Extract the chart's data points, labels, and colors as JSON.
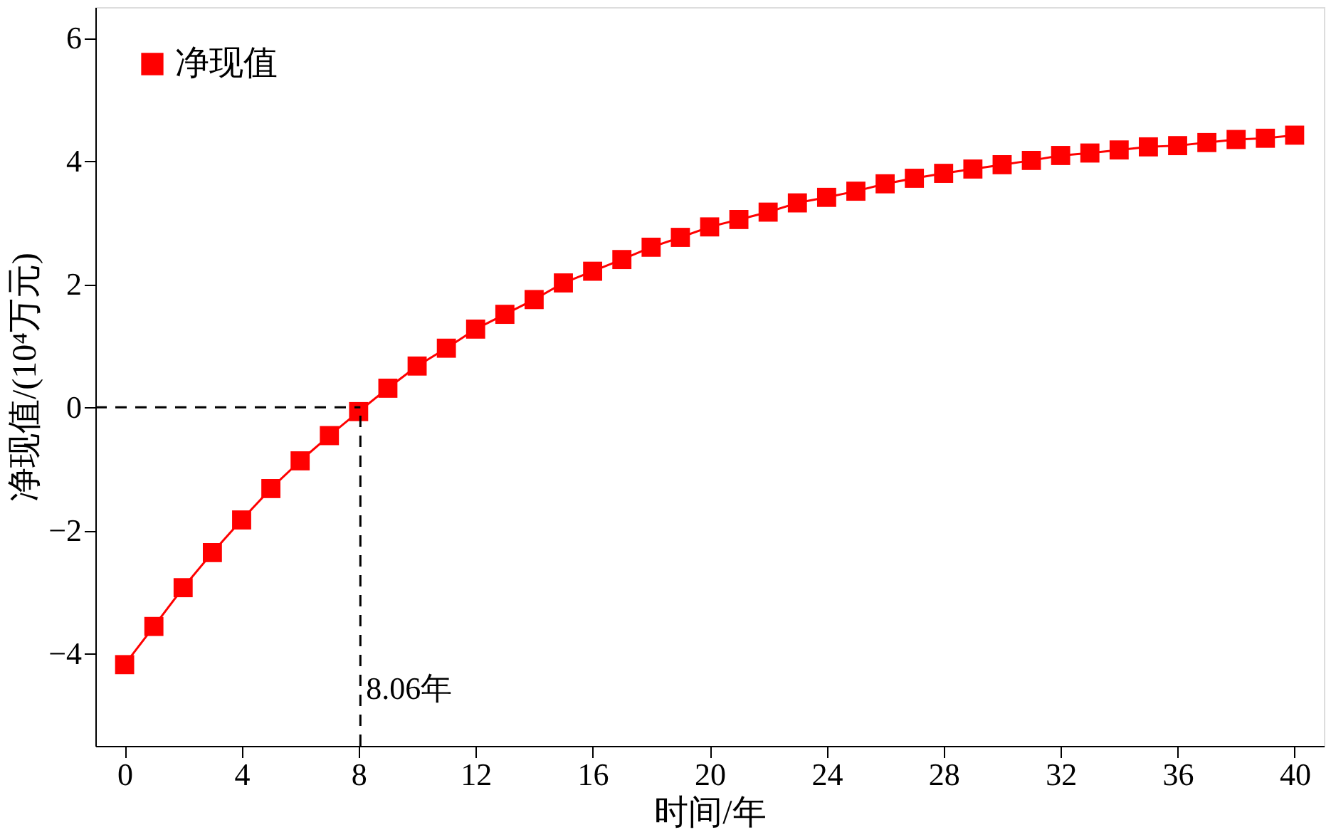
{
  "chart_data": {
    "type": "line",
    "xlabel": "时间/年",
    "ylabel": "净现值/(10⁴万元)",
    "x": [
      0,
      1,
      2,
      3,
      4,
      5,
      6,
      7,
      8,
      9,
      10,
      11,
      12,
      13,
      14,
      15,
      16,
      17,
      18,
      19,
      20,
      21,
      22,
      23,
      24,
      25,
      26,
      27,
      28,
      29,
      30,
      31,
      32,
      33,
      34,
      35,
      36,
      37,
      38,
      39,
      40
    ],
    "series": [
      {
        "name": "净现值",
        "color": "#ff0000",
        "values": [
          -4.18,
          -3.56,
          -2.93,
          -2.36,
          -1.83,
          -1.32,
          -0.87,
          -0.46,
          -0.07,
          0.31,
          0.67,
          0.96,
          1.27,
          1.51,
          1.75,
          2.02,
          2.21,
          2.4,
          2.6,
          2.76,
          2.93,
          3.05,
          3.17,
          3.32,
          3.41,
          3.51,
          3.63,
          3.72,
          3.8,
          3.87,
          3.94,
          4.01,
          4.09,
          4.13,
          4.18,
          4.23,
          4.25,
          4.3,
          4.35,
          4.37,
          4.42
        ]
      }
    ],
    "xlim": [
      -1,
      41
    ],
    "xticks": [
      0,
      4,
      8,
      12,
      16,
      20,
      24,
      28,
      32,
      36,
      40
    ],
    "ylim": [
      -5.5,
      6.5
    ],
    "yticks": [
      -4,
      -2,
      0,
      2,
      4,
      6
    ],
    "ref_lines": [
      {
        "axis": "x",
        "value": 8.06,
        "label": "8.06年",
        "color": "#000000",
        "line_style": "dashed"
      },
      {
        "axis": "y",
        "value": 0,
        "color": "#000000",
        "line_style": "dashed"
      }
    ],
    "marker": "square",
    "line_style": "solid",
    "legend": "top left",
    "grid": false
  }
}
